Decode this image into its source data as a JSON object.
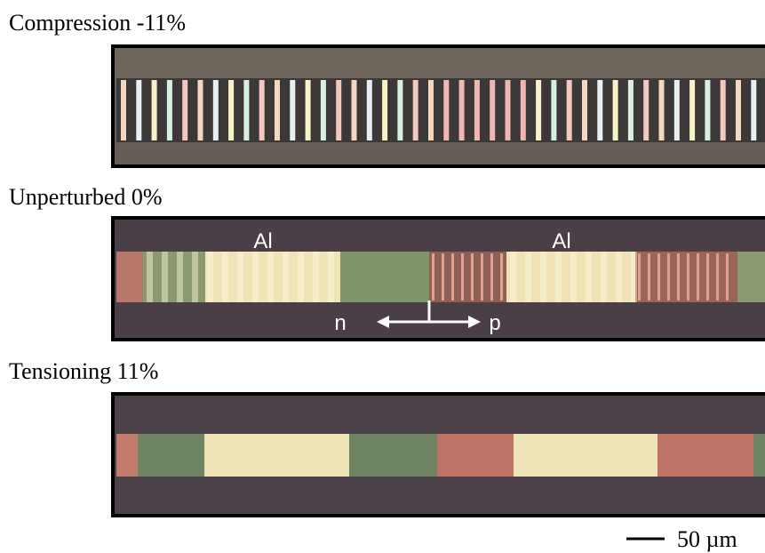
{
  "panels": [
    {
      "label": "Compression -11%"
    },
    {
      "label": "Unperturbed 0%",
      "annotations": [
        "Al",
        "Al",
        "n",
        "p"
      ]
    },
    {
      "label": "Tensioning 11%"
    }
  ],
  "scale_bar": {
    "label": "50 µm"
  }
}
